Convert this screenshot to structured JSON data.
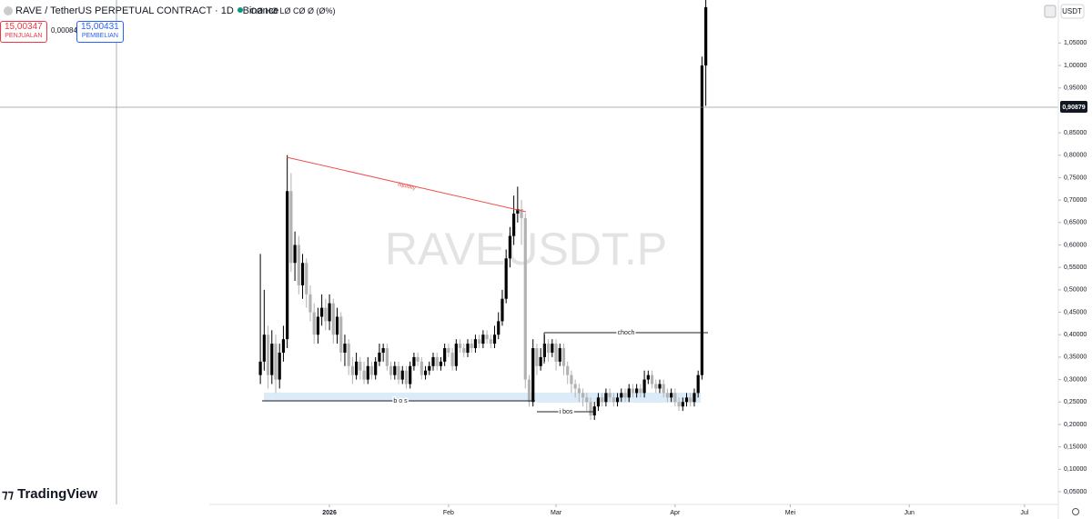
{
  "header": {
    "symbol": "RAVE / TetherUS PERPETUAL CONTRACT · 1D · Binance",
    "ohlc": "OØ HØ LØ CØ Ø (Ø%)",
    "sell_price": "15,00347",
    "sell_label": "PENJUALAN",
    "spread": "0,00084",
    "buy_price": "15,00431",
    "buy_label": "PEMBELIAN",
    "currency": "USDT",
    "watermark": "RAVEUSDT.P",
    "logo": "TradingView",
    "crosshair_price": "0,90879"
  },
  "chart_data": {
    "type": "candlestick",
    "up_color": "#000000",
    "down_color": "#b2b2b2",
    "annotations": {
      "liquidity": "liquidity",
      "bos": "b o s",
      "choch": "choch",
      "ibos": "i bos"
    },
    "xlim": [
      -67.8,
      207.8
    ],
    "xticks": [
      {
        "value": 18,
        "label": "2026"
      },
      {
        "value": 49,
        "label": "Feb"
      },
      {
        "value": 77,
        "label": "Mar"
      },
      {
        "value": 108,
        "label": "Apr"
      },
      {
        "value": 138,
        "label": "Mei"
      },
      {
        "value": 169,
        "label": "Jun"
      },
      {
        "value": 199,
        "label": "Jul"
      }
    ],
    "ylim": [
      0.0216,
      1.146
    ],
    "yticks": [
      {
        "value": 0.05,
        "label": "0,05000"
      },
      {
        "value": 0.1,
        "label": "0,10000"
      },
      {
        "value": 0.15,
        "label": "0,15000"
      },
      {
        "value": 0.2,
        "label": "0,20000"
      },
      {
        "value": 0.25,
        "label": "0,25000"
      },
      {
        "value": 0.3,
        "label": "0,30000"
      },
      {
        "value": 0.35,
        "label": "0,35000"
      },
      {
        "value": 0.4,
        "label": "0,40000"
      },
      {
        "value": 0.45,
        "label": "0,45000"
      },
      {
        "value": 0.5,
        "label": "0,50000"
      },
      {
        "value": 0.55,
        "label": "0,55000"
      },
      {
        "value": 0.6,
        "label": "0,60000"
      },
      {
        "value": 0.65,
        "label": "0,65000"
      },
      {
        "value": 0.7,
        "label": "0,70000"
      },
      {
        "value": 0.75,
        "label": "0,75000"
      },
      {
        "value": 0.8,
        "label": "0,80000"
      },
      {
        "value": 0.85,
        "label": "0,85000"
      },
      {
        "value": 0.95,
        "label": "0,95000"
      },
      {
        "value": 1.0,
        "label": "1,00000"
      },
      {
        "value": 1.05,
        "label": "1,05000"
      }
    ],
    "open": [
      0.31,
      0.34,
      0.4,
      0.31,
      0.38,
      0.3,
      0.36,
      0.39,
      0.72,
      0.56,
      0.6,
      0.51,
      0.56,
      0.49,
      0.45,
      0.4,
      0.44,
      0.46,
      0.43,
      0.47,
      0.4,
      0.44,
      0.36,
      0.38,
      0.33,
      0.31,
      0.34,
      0.32,
      0.3,
      0.33,
      0.31,
      0.34,
      0.36,
      0.37,
      0.33,
      0.31,
      0.33,
      0.3,
      0.32,
      0.29,
      0.33,
      0.35,
      0.34,
      0.31,
      0.32,
      0.33,
      0.35,
      0.33,
      0.34,
      0.37,
      0.36,
      0.33,
      0.38,
      0.37,
      0.36,
      0.38,
      0.37,
      0.39,
      0.38,
      0.4,
      0.39,
      0.38,
      0.4,
      0.43,
      0.48,
      0.57,
      0.62,
      0.67,
      0.68,
      0.66,
      0.3,
      0.25,
      0.37,
      0.33,
      0.35,
      0.38,
      0.36,
      0.38,
      0.34,
      0.37,
      0.33,
      0.31,
      0.29,
      0.28,
      0.27,
      0.26,
      0.25,
      0.22,
      0.24,
      0.26,
      0.25,
      0.27,
      0.26,
      0.25,
      0.26,
      0.27,
      0.26,
      0.28,
      0.27,
      0.28,
      0.27,
      0.3,
      0.31,
      0.29,
      0.28,
      0.29,
      0.27,
      0.26,
      0.27,
      0.25,
      0.24,
      0.25,
      0.26,
      0.25,
      0.27,
      0.31,
      1.0
    ],
    "high": [
      0.58,
      0.5,
      0.42,
      0.41,
      0.4,
      0.38,
      0.42,
      0.8,
      0.76,
      0.63,
      0.62,
      0.58,
      0.57,
      0.51,
      0.47,
      0.46,
      0.49,
      0.48,
      0.49,
      0.48,
      0.46,
      0.45,
      0.4,
      0.39,
      0.35,
      0.36,
      0.35,
      0.34,
      0.35,
      0.34,
      0.35,
      0.38,
      0.38,
      0.38,
      0.34,
      0.34,
      0.34,
      0.33,
      0.33,
      0.34,
      0.36,
      0.36,
      0.35,
      0.33,
      0.34,
      0.36,
      0.36,
      0.35,
      0.38,
      0.38,
      0.37,
      0.39,
      0.39,
      0.38,
      0.39,
      0.39,
      0.4,
      0.4,
      0.41,
      0.41,
      0.4,
      0.42,
      0.45,
      0.5,
      0.59,
      0.64,
      0.71,
      0.73,
      0.7,
      0.67,
      0.31,
      0.39,
      0.38,
      0.37,
      0.4,
      0.39,
      0.39,
      0.39,
      0.38,
      0.38,
      0.34,
      0.32,
      0.3,
      0.29,
      0.28,
      0.27,
      0.26,
      0.25,
      0.27,
      0.27,
      0.28,
      0.28,
      0.27,
      0.27,
      0.28,
      0.28,
      0.29,
      0.29,
      0.29,
      0.29,
      0.32,
      0.32,
      0.32,
      0.3,
      0.3,
      0.3,
      0.28,
      0.28,
      0.28,
      0.26,
      0.26,
      0.27,
      0.27,
      0.28,
      0.32,
      1.02,
      1.146
    ],
    "low": [
      0.29,
      0.32,
      0.28,
      0.29,
      0.27,
      0.28,
      0.34,
      0.37,
      0.54,
      0.52,
      0.49,
      0.48,
      0.46,
      0.43,
      0.38,
      0.38,
      0.42,
      0.41,
      0.41,
      0.38,
      0.38,
      0.34,
      0.33,
      0.31,
      0.29,
      0.3,
      0.3,
      0.29,
      0.29,
      0.3,
      0.3,
      0.33,
      0.34,
      0.32,
      0.3,
      0.3,
      0.29,
      0.29,
      0.28,
      0.28,
      0.32,
      0.33,
      0.3,
      0.3,
      0.31,
      0.32,
      0.32,
      0.32,
      0.33,
      0.35,
      0.32,
      0.32,
      0.36,
      0.35,
      0.35,
      0.36,
      0.36,
      0.37,
      0.37,
      0.38,
      0.37,
      0.37,
      0.39,
      0.42,
      0.47,
      0.55,
      0.6,
      0.65,
      0.6,
      0.28,
      0.24,
      0.24,
      0.31,
      0.32,
      0.34,
      0.34,
      0.35,
      0.32,
      0.33,
      0.31,
      0.29,
      0.27,
      0.26,
      0.25,
      0.24,
      0.23,
      0.21,
      0.21,
      0.23,
      0.24,
      0.24,
      0.25,
      0.24,
      0.24,
      0.25,
      0.25,
      0.25,
      0.26,
      0.26,
      0.26,
      0.26,
      0.29,
      0.28,
      0.27,
      0.27,
      0.26,
      0.25,
      0.25,
      0.24,
      0.23,
      0.23,
      0.24,
      0.24,
      0.24,
      0.26,
      0.3,
      0.91
    ],
    "close": [
      0.34,
      0.4,
      0.31,
      0.38,
      0.3,
      0.36,
      0.39,
      0.72,
      0.56,
      0.6,
      0.51,
      0.56,
      0.49,
      0.45,
      0.4,
      0.44,
      0.46,
      0.43,
      0.47,
      0.4,
      0.44,
      0.36,
      0.38,
      0.33,
      0.31,
      0.34,
      0.32,
      0.3,
      0.33,
      0.31,
      0.34,
      0.36,
      0.37,
      0.33,
      0.31,
      0.33,
      0.3,
      0.32,
      0.29,
      0.33,
      0.35,
      0.34,
      0.31,
      0.32,
      0.33,
      0.35,
      0.33,
      0.34,
      0.37,
      0.36,
      0.33,
      0.38,
      0.37,
      0.36,
      0.38,
      0.37,
      0.39,
      0.38,
      0.4,
      0.39,
      0.38,
      0.4,
      0.43,
      0.48,
      0.57,
      0.62,
      0.67,
      0.68,
      0.66,
      0.3,
      0.25,
      0.37,
      0.33,
      0.35,
      0.38,
      0.36,
      0.38,
      0.34,
      0.37,
      0.33,
      0.31,
      0.29,
      0.28,
      0.27,
      0.26,
      0.25,
      0.22,
      0.24,
      0.26,
      0.25,
      0.27,
      0.26,
      0.25,
      0.26,
      0.27,
      0.26,
      0.28,
      0.27,
      0.28,
      0.27,
      0.3,
      0.31,
      0.29,
      0.28,
      0.29,
      0.27,
      0.26,
      0.27,
      0.25,
      0.24,
      0.25,
      0.26,
      0.25,
      0.27,
      0.31,
      1.0,
      1.13
    ]
  }
}
